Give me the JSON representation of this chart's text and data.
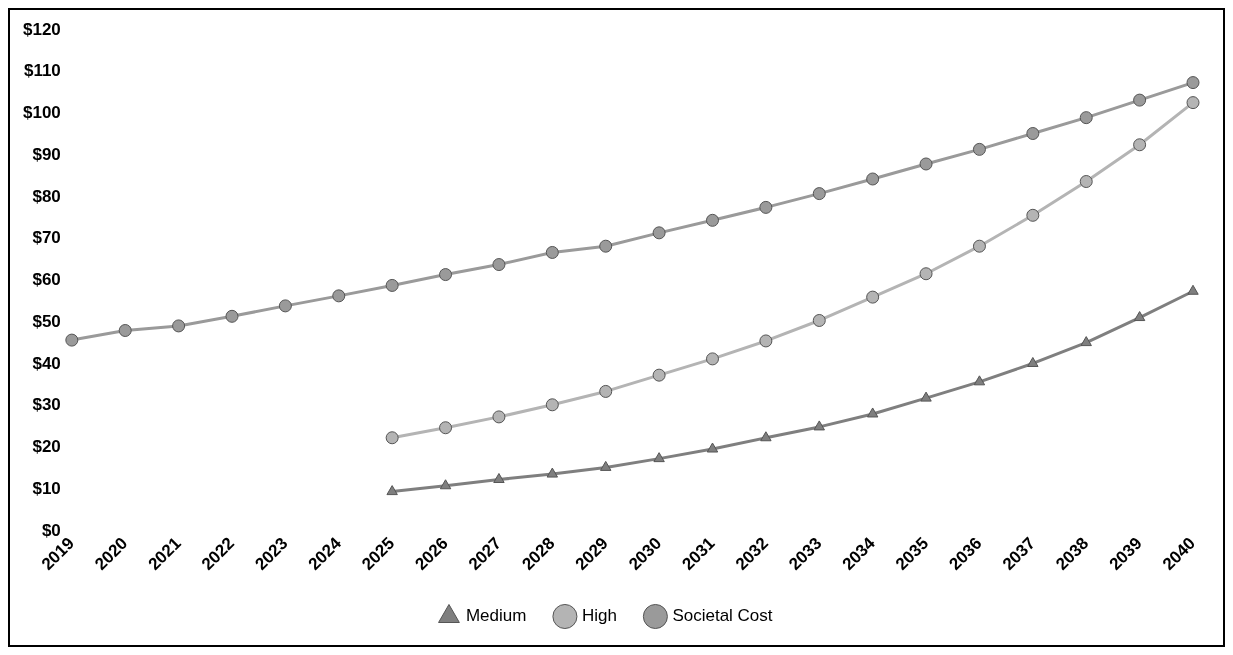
{
  "chart_data": {
    "type": "line",
    "categories": [
      "2019",
      "2020",
      "2021",
      "2022",
      "2023",
      "2024",
      "2025",
      "2026",
      "2027",
      "2028",
      "2029",
      "2030",
      "2031",
      "2032",
      "2033",
      "2034",
      "2035",
      "2036",
      "2037",
      "2038",
      "2039",
      "2040"
    ],
    "series": [
      {
        "name": "Medium",
        "color": "#7f7f7f",
        "marker": "triangle",
        "values": [
          null,
          null,
          null,
          null,
          null,
          null,
          9.4,
          10.8,
          12.3,
          13.6,
          15.2,
          17.3,
          19.6,
          22.3,
          24.9,
          28.0,
          31.8,
          35.7,
          40.1,
          45.1,
          51.1,
          57.4
        ]
      },
      {
        "name": "High",
        "color": "#b4b4b4",
        "marker": "circle",
        "values": [
          null,
          null,
          null,
          null,
          null,
          null,
          22.3,
          24.7,
          27.3,
          30.2,
          33.4,
          37.3,
          41.2,
          45.5,
          50.4,
          56.0,
          61.6,
          68.2,
          75.6,
          83.7,
          92.5,
          102.6
        ]
      },
      {
        "name": "Societal Cost",
        "color": "#9a9a9a",
        "marker": "circle",
        "values": [
          45.7,
          48.0,
          49.1,
          51.4,
          53.9,
          56.3,
          58.8,
          61.4,
          63.8,
          66.7,
          68.2,
          71.4,
          74.4,
          77.5,
          80.8,
          84.3,
          87.9,
          91.4,
          95.2,
          99.0,
          103.2,
          107.4
        ]
      }
    ],
    "ylim": [
      0,
      120
    ],
    "yticks": [
      {
        "value": 0,
        "label": "$0"
      },
      {
        "value": 10,
        "label": "$10"
      },
      {
        "value": 20,
        "label": "$20"
      },
      {
        "value": 30,
        "label": "$30"
      },
      {
        "value": 40,
        "label": "$40"
      },
      {
        "value": 50,
        "label": "$50"
      },
      {
        "value": 60,
        "label": "$60"
      },
      {
        "value": 70,
        "label": "$70"
      },
      {
        "value": 80,
        "label": "$80"
      },
      {
        "value": 90,
        "label": "$90"
      },
      {
        "value": 100,
        "label": "$100"
      },
      {
        "value": 110,
        "label": "$110"
      },
      {
        "value": 120,
        "label": "$120"
      }
    ],
    "grid": false,
    "legend": "bottom"
  }
}
